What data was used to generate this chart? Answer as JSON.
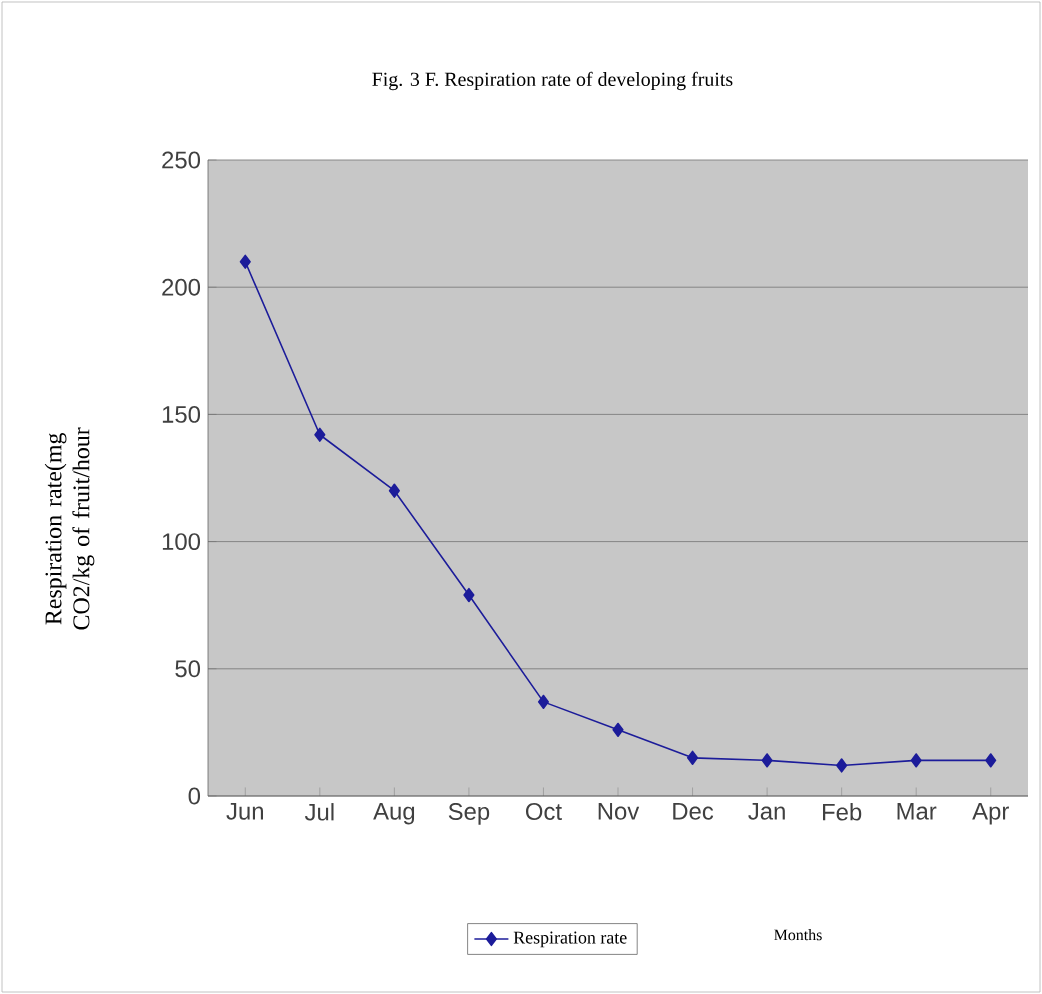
{
  "chart_data": {
    "type": "line",
    "title": "Fig. 3 F. Respiration rate of developing fruits",
    "annotations": [
      "Months"
    ],
    "ylabel": "Respiration rate(mg CO2/kg of fruit/hour",
    "categories": [
      "Jun",
      "Jul",
      "Aug",
      "Sep",
      "Oct",
      "Nov",
      "Dec",
      "Jan",
      "Feb",
      "Mar",
      "Apr"
    ],
    "series": [
      {
        "name": "Respiration rate",
        "color": "#1c1c9a",
        "values": [
          210,
          142,
          120,
          79,
          37,
          26,
          15,
          14,
          12,
          14,
          14
        ]
      }
    ],
    "ylim": [
      0,
      250
    ],
    "yticks": [
      0,
      50,
      100,
      150,
      200,
      250
    ],
    "grid": "y",
    "legend": "bottom",
    "marker": "diamond",
    "line_style": "solid"
  }
}
